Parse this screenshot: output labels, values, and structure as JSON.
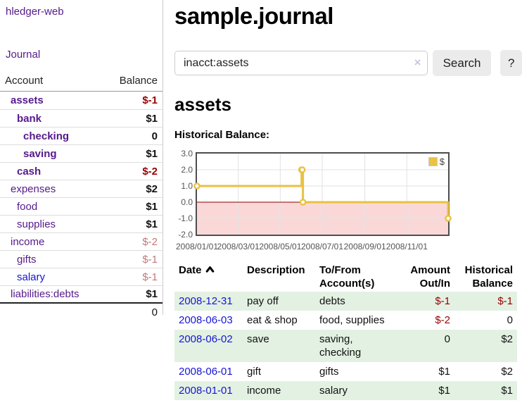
{
  "app": {
    "title": "hledger-web",
    "nav": {
      "journal": "Journal"
    }
  },
  "sidebar": {
    "header": {
      "account": "Account",
      "balance": "Balance"
    },
    "accounts": [
      {
        "name": "assets",
        "balance": "$-1",
        "depth": 0,
        "bold": true
      },
      {
        "name": "bank",
        "balance": "$1",
        "depth": 1,
        "bold": true
      },
      {
        "name": "checking",
        "balance": "0",
        "depth": 2,
        "bold": true
      },
      {
        "name": "saving",
        "balance": "$1",
        "depth": 2,
        "bold": true
      },
      {
        "name": "cash",
        "balance": "$-2",
        "depth": 1,
        "bold": true
      },
      {
        "name": "expenses",
        "balance": "$2",
        "depth": 0,
        "bold": false
      },
      {
        "name": "food",
        "balance": "$1",
        "depth": 1,
        "bold": false
      },
      {
        "name": "supplies",
        "balance": "$1",
        "depth": 1,
        "bold": false
      },
      {
        "name": "income",
        "balance": "$-2",
        "depth": 0,
        "bold": false
      },
      {
        "name": "gifts",
        "balance": "$-1",
        "depth": 1,
        "bold": false
      },
      {
        "name": "salary",
        "balance": "$-1",
        "depth": 1,
        "bold": false,
        "blue": true
      },
      {
        "name": "liabilities:debts",
        "balance": "$1",
        "depth": 0,
        "bold": false,
        "last": true
      }
    ],
    "total": "0"
  },
  "main": {
    "title": "sample.journal",
    "search": {
      "value": "inacct:assets",
      "clear_icon": "×",
      "button_label": "Search",
      "help_label": "?"
    },
    "account_heading": "assets",
    "chart_label": "Historical Balance:"
  },
  "chart_data": {
    "type": "line",
    "title": "Historical Balance:",
    "steps": true,
    "x_range": [
      "2008-01-01",
      "2008-12-31"
    ],
    "ylim": [
      -2.0,
      3.0
    ],
    "ytick_labels": [
      "3.0",
      "2.0",
      "1.0",
      "0.0",
      "-1.0",
      "-2.0"
    ],
    "xtick_labels": [
      "2008/01/01",
      "2008/03/01",
      "2008/05/01",
      "2008/07/01",
      "2008/09/01",
      "2008/11/01"
    ],
    "series": [
      {
        "name": "$",
        "color": "#e9c143",
        "points": [
          [
            "2008-01-01",
            1
          ],
          [
            "2008-06-01",
            2
          ],
          [
            "2008-06-02",
            2
          ],
          [
            "2008-06-03",
            0
          ],
          [
            "2008-12-31",
            -1
          ]
        ]
      }
    ],
    "legend": {
      "label": "$",
      "color": "#edc240",
      "position": "top-right"
    },
    "zero_line_color": "#8b0000",
    "negative_region_color": "#fbd8d8",
    "grid": true
  },
  "register": {
    "headers": [
      "Date",
      "Description",
      "To/From Account(s)",
      "Amount Out/In",
      "Historical Balance"
    ],
    "rows": [
      {
        "date": "2008-12-31",
        "description": "pay off",
        "accounts": "debts",
        "amount": "$-1",
        "balance": "$-1"
      },
      {
        "date": "2008-06-03",
        "description": "eat & shop",
        "accounts": "food, supplies",
        "amount": "$-2",
        "balance": "0"
      },
      {
        "date": "2008-06-02",
        "description": "save",
        "accounts": "saving, checking",
        "amount": "0",
        "balance": "$2"
      },
      {
        "date": "2008-06-01",
        "description": "gift",
        "accounts": "gifts",
        "amount": "$1",
        "balance": "$2"
      },
      {
        "date": "2008-01-01",
        "description": "income",
        "accounts": "salary",
        "amount": "$1",
        "balance": "$1"
      }
    ]
  }
}
